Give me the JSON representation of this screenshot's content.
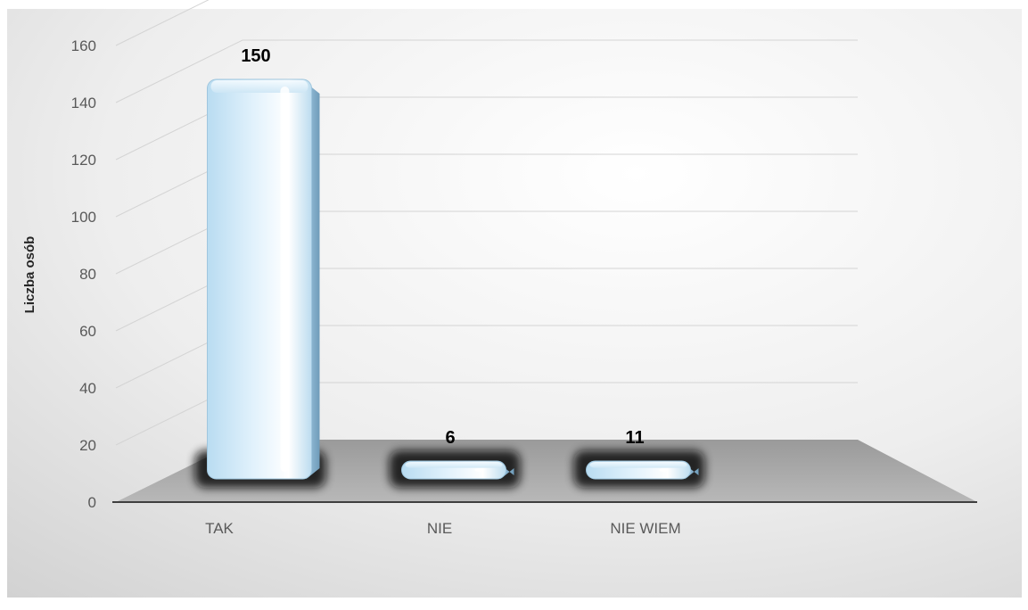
{
  "chart_data": {
    "type": "bar",
    "title": "",
    "xlabel": "",
    "ylabel": "Liczba osób",
    "categories": [
      "TAK",
      "NIE",
      "NIE WIEM"
    ],
    "values": [
      150,
      6,
      11
    ],
    "data_labels": [
      "150",
      "6",
      "11"
    ],
    "ylim": [
      0,
      160
    ],
    "yticks": [
      0,
      20,
      40,
      60,
      80,
      100,
      120,
      140,
      160
    ],
    "grid": true,
    "legend": "none",
    "style": "3d",
    "colors": {
      "bar_fill": "#cfe8f7",
      "bar_edge": "#9fc6de",
      "floor": "#a6a6a6",
      "floor_shadow": "#111111",
      "background_light": "#ffffff",
      "background_dark": "#d9d9d9",
      "gridline": "#d4d4d4",
      "axis_text": "#595959",
      "label_text": "#000000"
    }
  }
}
